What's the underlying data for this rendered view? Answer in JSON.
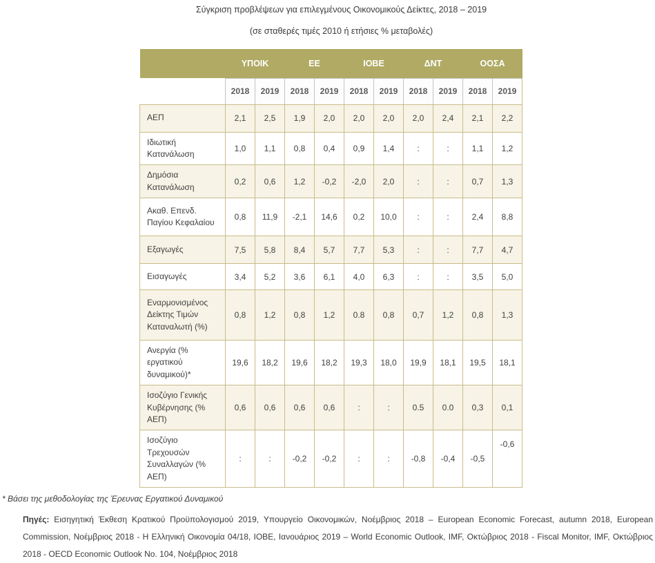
{
  "title": "Σύγκριση προβλέψεων για επιλεγμένους Οικονομικούς Δείκτες, 2018 – 2019",
  "subtitle": "(σε σταθερές τιμές 2010 ή ετήσιες % μεταβολές)",
  "table": {
    "groups": [
      {
        "label": "ΥΠΟΙΚ"
      },
      {
        "label": "ΕΕ"
      },
      {
        "label": "ΙΟΒΕ"
      },
      {
        "label": "ΔΝΤ"
      },
      {
        "label": "ΟΟΣΑ"
      }
    ],
    "years": [
      "2018",
      "2019",
      "2018",
      "2019",
      "2018",
      "2019",
      "2018",
      "2019",
      "2018",
      "2019"
    ],
    "rows": [
      {
        "label": "ΑΕΠ",
        "values": [
          "2,1",
          "2,5",
          "1,9",
          "2,0",
          "2,0",
          "2,0",
          "2,0",
          "2,4",
          "2,1",
          "2,2"
        ]
      },
      {
        "label": "Ιδιωτική Κατανάλωση",
        "values": [
          "1,0",
          "1,1",
          "0,8",
          "0,4",
          "0,9",
          "1,4",
          ":",
          ":",
          "1,1",
          "1,2"
        ]
      },
      {
        "label": "Δημόσια Κατανάλωση",
        "values": [
          "0,2",
          "0,6",
          "1,2",
          "-0,2",
          "-2,0",
          "2,0",
          ":",
          ":",
          "0,7",
          "1,3"
        ]
      },
      {
        "label": "Ακαθ. Επενδ. Παγίου Κεφαλαίου",
        "values": [
          "0,8",
          "11,9",
          "-2,1",
          "14,6",
          "0,2",
          "10,0",
          ":",
          ":",
          "2,4",
          "8,8"
        ]
      },
      {
        "label": "Εξαγωγές",
        "values": [
          "7,5",
          "5,8",
          "8,4",
          "5,7",
          "7,7",
          "5,3",
          ":",
          ":",
          "7,7",
          "4,7"
        ]
      },
      {
        "label": "Εισαγωγές",
        "values": [
          "3,4",
          "5,2",
          "3,6",
          "6,1",
          "4,0",
          "6,3",
          ":",
          ":",
          "3,5",
          "5,0"
        ]
      },
      {
        "label": "Εναρμονισμένος Δείκτης Τιμών Καταναλωτή (%)",
        "values": [
          "0,8",
          "1,2",
          "0,8",
          "1,2",
          "0.8",
          "0,8",
          "0,7",
          "1,2",
          "0,8",
          "1,3"
        ]
      },
      {
        "label": "Ανεργία (% εργατικού δυναμικού)*",
        "values": [
          "19,6",
          "18,2",
          "19,6",
          "18,2",
          "19,3",
          "18,0",
          "19,9",
          "18,1",
          "19,5",
          "18,1"
        ]
      },
      {
        "label": "Ισοζύγιο Γενικής Κυβέρνησης (% ΑΕΠ)",
        "values": [
          "0,6",
          "0,6",
          "0,6",
          "0,6",
          ":",
          ":",
          "0.5",
          "0.0",
          "0,3",
          "0,1"
        ]
      },
      {
        "label": "Ισοζύγιο Τρεχουσών Συναλλαγών (% ΑΕΠ)",
        "values": [
          ":",
          ":",
          "-0,2",
          "-0,2",
          ":",
          ":",
          "-0,8",
          "-0,4",
          "-0,5",
          "-0,6"
        ]
      }
    ]
  },
  "footnotes": {
    "methodology": "* Βάσει της μεθοδολογίας της Έρευνας Εργατικού Δυναμικού",
    "sources_label": "Πηγές:",
    "sources_text": "Εισηγητική Έκθεση Κρατικού Προϋπολογισμού 2019, Υπουργείο Οικονομικών, Νοέμβριος 2018 – European Economic Forecast, autumn 2018, European Commission, Νοέμβριος 2018 - Η Ελληνική Οικονομία 04/18, ΙΟΒΕ, Ιανουάριος 2019 – World Economic Outlook, IMF, Οκτώβριος 2018 - Fiscal Monitor, IMF, Οκτώβριος 2018 - OECD Economic Outlook No. 104, Νοέμβριος 2018"
  },
  "colors": {
    "header_bg": "#b0aa64",
    "row_alt_bg": "#f7f3e6",
    "border": "#c8bc88"
  }
}
